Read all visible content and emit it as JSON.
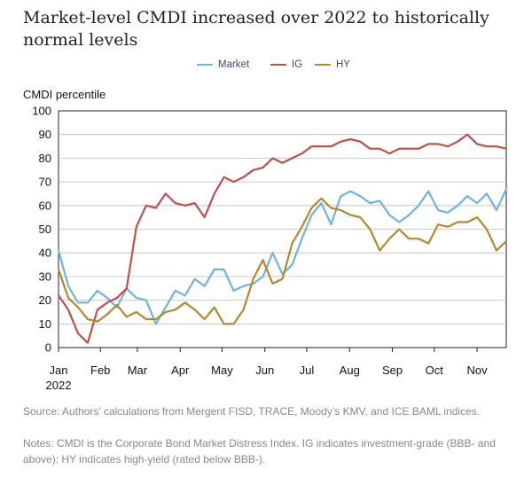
{
  "title": "Market-level CMDI increased over 2022 to historically normal levels",
  "legend": [
    {
      "label": "Market",
      "color": "#6fb3e3"
    },
    {
      "label": "IG",
      "color": "#c0504d"
    },
    {
      "label": "HY",
      "color": "#b3892f"
    }
  ],
  "source": "Source: Authors’ calculations from Mergent FISD, TRACE, Moody’s KMV, and ICE BAML indices.",
  "notes": "Notes: CMDI is the Corporate Bond Market Distress Index. IG indicates investment-grade (BBB- and above); HY indicates high-yield (rated below BBB-).",
  "chart_data": {
    "type": "line",
    "ylabel": "CMDI percentile",
    "ylim": [
      0,
      100
    ],
    "yticks": [
      0,
      10,
      20,
      30,
      40,
      50,
      60,
      70,
      80,
      90,
      100
    ],
    "xlim": [
      0,
      46
    ],
    "xticks": [
      {
        "x": 0,
        "label": "Jan",
        "sublabel": "2022"
      },
      {
        "x": 4.3,
        "label": "Feb"
      },
      {
        "x": 8.1,
        "label": "Mar"
      },
      {
        "x": 12.5,
        "label": "Apr"
      },
      {
        "x": 16.8,
        "label": "May"
      },
      {
        "x": 21.2,
        "label": "Jun"
      },
      {
        "x": 25.5,
        "label": "Jul"
      },
      {
        "x": 29.9,
        "label": "Aug"
      },
      {
        "x": 34.3,
        "label": "Sep"
      },
      {
        "x": 38.6,
        "label": "Oct"
      },
      {
        "x": 43.0,
        "label": "Nov"
      }
    ],
    "grid": true,
    "legend_position": "top-center",
    "series": [
      {
        "name": "Market",
        "color": "#6fb3e3",
        "x": [
          0,
          1,
          2,
          3,
          4,
          5,
          6,
          7,
          8,
          9,
          10,
          11,
          12,
          13,
          14,
          15,
          16,
          17,
          18,
          19,
          20,
          21,
          22,
          23,
          24,
          25,
          26,
          27,
          28,
          29,
          30,
          31,
          32,
          33,
          34,
          35,
          36,
          37,
          38,
          39,
          40,
          41,
          42,
          43,
          44,
          45,
          46
        ],
        "values": [
          41,
          26,
          19,
          19,
          24,
          21,
          17,
          25,
          21,
          20,
          10,
          17,
          24,
          22,
          29,
          26,
          33,
          33,
          24,
          26,
          27,
          30,
          40,
          31,
          35,
          46,
          56,
          61,
          52,
          64,
          66,
          64,
          61,
          62,
          56,
          53,
          56,
          60,
          66,
          58,
          57,
          60,
          64,
          61,
          65,
          58,
          67
        ]
      },
      {
        "name": "IG",
        "color": "#c0504d",
        "x": [
          0,
          1,
          2,
          3,
          4,
          5,
          6,
          7,
          8,
          9,
          10,
          11,
          12,
          13,
          14,
          15,
          16,
          17,
          18,
          19,
          20,
          21,
          22,
          23,
          24,
          25,
          26,
          27,
          28,
          29,
          30,
          31,
          32,
          33,
          34,
          35,
          36,
          37,
          38,
          39,
          40,
          41,
          42,
          43,
          44,
          45,
          46
        ],
        "values": [
          22,
          16,
          6,
          2,
          16,
          19,
          21,
          25,
          51,
          60,
          59,
          65,
          61,
          60,
          61,
          55,
          65,
          72,
          70,
          72,
          75,
          76,
          80,
          78,
          80,
          82,
          85,
          85,
          85,
          87,
          88,
          87,
          84,
          84,
          82,
          84,
          84,
          84,
          86,
          86,
          85,
          87,
          90,
          86,
          85,
          85,
          84
        ]
      },
      {
        "name": "HY",
        "color": "#b3892f",
        "x": [
          0,
          1,
          2,
          3,
          4,
          5,
          6,
          7,
          8,
          9,
          10,
          11,
          12,
          13,
          14,
          15,
          16,
          17,
          18,
          19,
          20,
          21,
          22,
          23,
          24,
          25,
          26,
          27,
          28,
          29,
          30,
          31,
          32,
          33,
          34,
          35,
          36,
          37,
          38,
          39,
          40,
          41,
          42,
          43,
          44,
          45,
          46
        ],
        "values": [
          33,
          21,
          17,
          12,
          11,
          14,
          18,
          13,
          15,
          12,
          12,
          15,
          16,
          19,
          16,
          12,
          17,
          10,
          10,
          16,
          29,
          37,
          27,
          29,
          44,
          51,
          59,
          63,
          59,
          58,
          56,
          55,
          50,
          41,
          46,
          50,
          46,
          46,
          44,
          52,
          51,
          53,
          53,
          55,
          50,
          41,
          45
        ]
      }
    ]
  }
}
